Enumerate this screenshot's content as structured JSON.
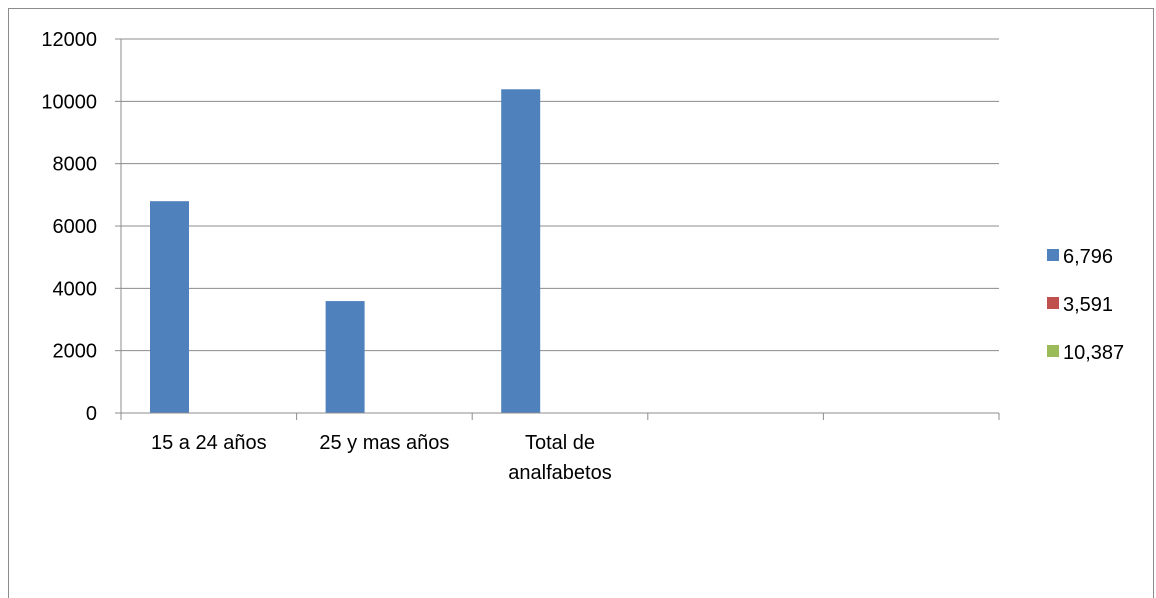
{
  "chart_data": {
    "type": "bar",
    "categories": [
      "15 a 24 años",
      "25 y mas años",
      "Total de analfabetos",
      "",
      ""
    ],
    "category_lines": [
      [
        "15 a 24 años"
      ],
      [
        "25 y mas años"
      ],
      [
        "Total de",
        "analfabetos"
      ],
      [],
      []
    ],
    "values": [
      6796,
      3591,
      10387,
      null,
      null
    ],
    "ylim": [
      0,
      12000
    ],
    "yticks": [
      0,
      2000,
      4000,
      6000,
      8000,
      10000,
      12000
    ],
    "grid": true,
    "legend_position": "right",
    "legend": [
      {
        "label": "6,796",
        "color": "#4f81bd"
      },
      {
        "label": "3,591",
        "color": "#c0504d"
      },
      {
        "label": "10,387",
        "color": "#9bbb59"
      }
    ],
    "bar_color": "#4f81bd",
    "title": "",
    "xlabel": "",
    "ylabel": ""
  }
}
